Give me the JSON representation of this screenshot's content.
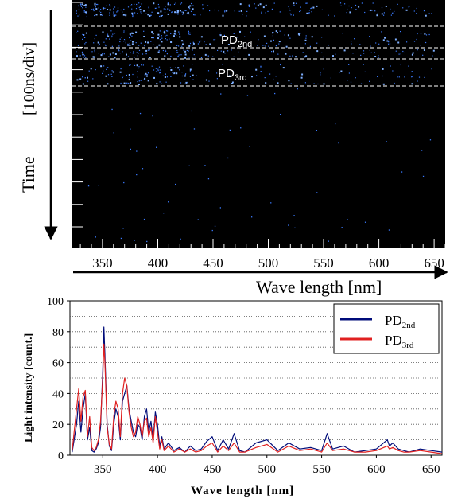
{
  "chart_data": [
    {
      "type": "heatmap",
      "description_visible": "streak camera image",
      "ylabel_rotated": "Time",
      "ylabel_unit": "[100ns/div]",
      "xlabel": "Wave length [nm]",
      "x_ticks": [
        350,
        400,
        450,
        500,
        550,
        600,
        650
      ],
      "xlim": [
        322,
        660
      ],
      "time_divisions": 10,
      "annotations": [
        {
          "label": "PD",
          "sub": "2nd"
        },
        {
          "label": "PD",
          "sub": "3rd"
        }
      ],
      "colors": {
        "background": "#000000",
        "dots": "#3a7bff",
        "dashed_lines": "#ffffff"
      }
    },
    {
      "type": "line",
      "xlabel": "Wave length [nm]",
      "ylabel": "Light intensity [count.]",
      "xlim": [
        320,
        660
      ],
      "ylim": [
        0,
        100
      ],
      "x_ticks": [
        350,
        400,
        450,
        500,
        550,
        600,
        650
      ],
      "y_ticks": [
        0,
        20,
        40,
        60,
        80,
        100
      ],
      "grid": "horizontal-dotted",
      "legend_position": "top-right",
      "series": [
        {
          "name": "PD",
          "name_sub": "2nd",
          "color": "#000c7a",
          "x": [
            322,
            326,
            328,
            330,
            332,
            334,
            336,
            338,
            340,
            342,
            344,
            346,
            348,
            350,
            351,
            352,
            354,
            356,
            358,
            360,
            362,
            364,
            366,
            368,
            370,
            372,
            374,
            376,
            378,
            380,
            382,
            384,
            386,
            388,
            390,
            392,
            394,
            396,
            398,
            400,
            402,
            404,
            406,
            410,
            415,
            420,
            425,
            430,
            435,
            440,
            445,
            450,
            455,
            460,
            465,
            470,
            475,
            480,
            490,
            500,
            510,
            520,
            530,
            540,
            550,
            555,
            560,
            570,
            580,
            590,
            600,
            610,
            612,
            615,
            620,
            625,
            630,
            640,
            650,
            660
          ],
          "y": [
            2,
            20,
            35,
            15,
            30,
            40,
            10,
            18,
            3,
            2,
            4,
            8,
            18,
            55,
            83,
            65,
            20,
            6,
            3,
            20,
            30,
            25,
            10,
            35,
            40,
            45,
            30,
            22,
            15,
            12,
            20,
            18,
            10,
            25,
            30,
            15,
            22,
            10,
            28,
            20,
            6,
            12,
            4,
            8,
            3,
            5,
            2,
            6,
            3,
            4,
            9,
            12,
            3,
            10,
            4,
            14,
            3,
            2,
            8,
            10,
            3,
            8,
            4,
            5,
            3,
            14,
            4,
            6,
            2,
            3,
            4,
            10,
            6,
            8,
            4,
            3,
            2,
            4,
            3,
            2
          ]
        },
        {
          "name": "PD",
          "name_sub": "3rd",
          "color": "#e02020",
          "x": [
            322,
            326,
            328,
            330,
            332,
            334,
            336,
            338,
            340,
            342,
            344,
            346,
            348,
            350,
            351,
            352,
            354,
            356,
            358,
            360,
            362,
            364,
            366,
            368,
            370,
            372,
            374,
            376,
            378,
            380,
            382,
            384,
            386,
            388,
            390,
            392,
            394,
            396,
            398,
            400,
            402,
            404,
            406,
            410,
            415,
            420,
            425,
            430,
            435,
            440,
            445,
            450,
            455,
            460,
            465,
            470,
            475,
            480,
            490,
            500,
            510,
            520,
            530,
            540,
            550,
            555,
            560,
            570,
            580,
            590,
            600,
            610,
            612,
            615,
            620,
            625,
            630,
            640,
            650,
            660
          ],
          "y": [
            3,
            30,
            43,
            22,
            38,
            42,
            12,
            25,
            5,
            3,
            5,
            10,
            22,
            50,
            72,
            60,
            18,
            7,
            4,
            25,
            35,
            30,
            12,
            40,
            50,
            45,
            28,
            18,
            12,
            15,
            25,
            20,
            12,
            22,
            24,
            12,
            18,
            8,
            25,
            15,
            4,
            10,
            3,
            6,
            2,
            4,
            2,
            4,
            2,
            3,
            6,
            8,
            2,
            6,
            3,
            8,
            2,
            2,
            5,
            7,
            2,
            6,
            3,
            4,
            2,
            8,
            3,
            4,
            2,
            2,
            3,
            6,
            4,
            5,
            3,
            2,
            2,
            3,
            2,
            1
          ]
        }
      ]
    }
  ]
}
